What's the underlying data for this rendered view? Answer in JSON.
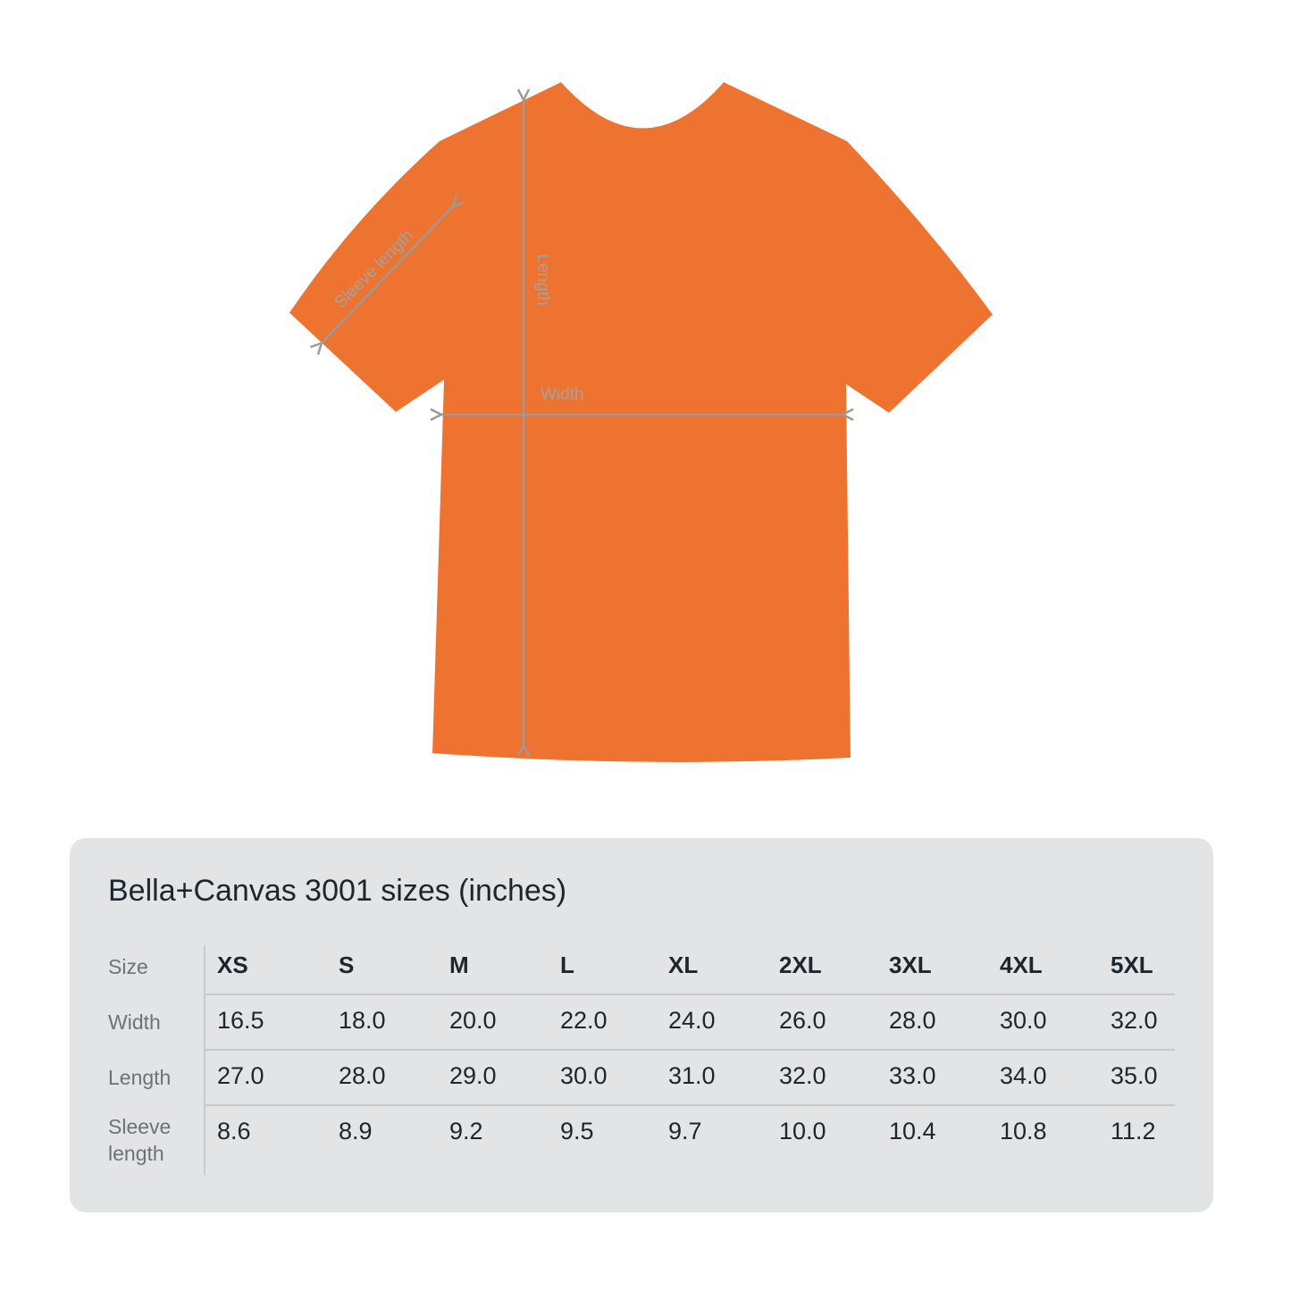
{
  "diagram": {
    "shirt_color": "#ee7330",
    "measure_line_color": "#9c9a98",
    "labels": {
      "sleeve": "Sleeve length",
      "length": "Length",
      "width": "Width"
    }
  },
  "table": {
    "title": "Bella+Canvas 3001 sizes (inches)",
    "row_labels": {
      "size": "Size",
      "width": "Width",
      "length": "Length",
      "sleeve": "Sleeve length"
    },
    "sizes": [
      "XS",
      "S",
      "M",
      "L",
      "XL",
      "2XL",
      "3XL",
      "4XL",
      "5XL"
    ],
    "width": [
      "16.5",
      "18.0",
      "20.0",
      "22.0",
      "24.0",
      "26.0",
      "28.0",
      "30.0",
      "32.0"
    ],
    "length": [
      "27.0",
      "28.0",
      "29.0",
      "30.0",
      "31.0",
      "32.0",
      "33.0",
      "34.0",
      "35.0"
    ],
    "sleeve": [
      "8.6",
      "8.9",
      "9.2",
      "9.5",
      "9.7",
      "10.0",
      "10.4",
      "10.8",
      "11.2"
    ]
  }
}
